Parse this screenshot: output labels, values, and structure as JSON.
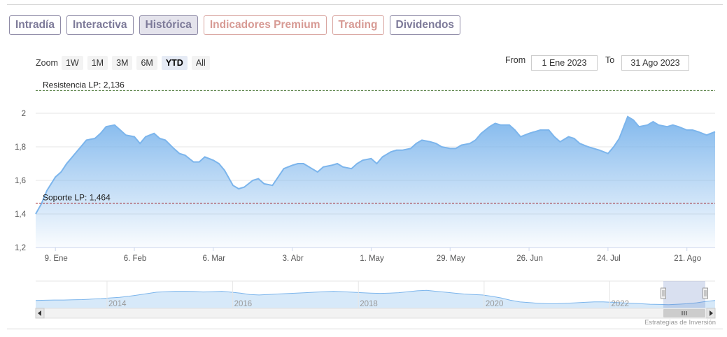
{
  "tabs": [
    {
      "label": "Intradía",
      "active": false,
      "premium": false
    },
    {
      "label": "Interactiva",
      "active": false,
      "premium": false
    },
    {
      "label": "Histórica",
      "active": true,
      "premium": false
    },
    {
      "label": "Indicadores Premium",
      "active": false,
      "premium": true
    },
    {
      "label": "Trading",
      "active": false,
      "premium": true
    },
    {
      "label": "Dividendos",
      "active": false,
      "premium": false
    }
  ],
  "range_selector": {
    "zoom_label": "Zoom",
    "buttons": [
      "1W",
      "1M",
      "3M",
      "6M",
      "YTD",
      "All"
    ],
    "selected": "YTD",
    "from_label": "From",
    "from_value": "1 Ene 2023",
    "to_label": "To",
    "to_value": "31 Ago 2023"
  },
  "colors": {
    "series": "#7cb5ec",
    "resistance": "#4d7a3a",
    "support": "#a0222a",
    "tab_border": "#8e8aa6",
    "premium_tab": "#d79a94"
  },
  "chart_data": {
    "type": "area",
    "x": [
      "2023-01-02",
      "2023-01-04",
      "2023-01-06",
      "2023-01-09",
      "2023-01-11",
      "2023-01-13",
      "2023-01-16",
      "2023-01-18",
      "2023-01-20",
      "2023-01-23",
      "2023-01-25",
      "2023-01-27",
      "2023-01-30",
      "2023-02-01",
      "2023-02-03",
      "2023-02-06",
      "2023-02-08",
      "2023-02-10",
      "2023-02-13",
      "2023-02-15",
      "2023-02-17",
      "2023-02-20",
      "2023-02-22",
      "2023-02-24",
      "2023-02-27",
      "2023-03-01",
      "2023-03-03",
      "2023-03-06",
      "2023-03-08",
      "2023-03-10",
      "2023-03-13",
      "2023-03-15",
      "2023-03-17",
      "2023-03-20",
      "2023-03-22",
      "2023-03-24",
      "2023-03-27",
      "2023-03-29",
      "2023-03-31",
      "2023-04-03",
      "2023-04-05",
      "2023-04-07",
      "2023-04-10",
      "2023-04-12",
      "2023-04-14",
      "2023-04-17",
      "2023-04-19",
      "2023-04-21",
      "2023-04-24",
      "2023-04-26",
      "2023-04-28",
      "2023-05-01",
      "2023-05-03",
      "2023-05-05",
      "2023-05-08",
      "2023-05-10",
      "2023-05-12",
      "2023-05-15",
      "2023-05-17",
      "2023-05-19",
      "2023-05-22",
      "2023-05-24",
      "2023-05-26",
      "2023-05-29",
      "2023-05-31",
      "2023-06-02",
      "2023-06-05",
      "2023-06-07",
      "2023-06-09",
      "2023-06-12",
      "2023-06-14",
      "2023-06-16",
      "2023-06-19",
      "2023-06-21",
      "2023-06-23",
      "2023-06-26",
      "2023-06-28",
      "2023-06-30",
      "2023-07-03",
      "2023-07-05",
      "2023-07-07",
      "2023-07-10",
      "2023-07-12",
      "2023-07-14",
      "2023-07-17",
      "2023-07-19",
      "2023-07-21",
      "2023-07-24",
      "2023-07-26",
      "2023-07-28",
      "2023-07-31",
      "2023-08-02",
      "2023-08-04",
      "2023-08-07",
      "2023-08-09",
      "2023-08-11",
      "2023-08-14",
      "2023-08-16",
      "2023-08-18",
      "2023-08-21",
      "2023-08-23",
      "2023-08-25",
      "2023-08-28",
      "2023-08-31"
    ],
    "series": [
      {
        "values": [
          1.4,
          1.46,
          1.54,
          1.62,
          1.65,
          1.7,
          1.76,
          1.8,
          1.84,
          1.85,
          1.88,
          1.92,
          1.93,
          1.9,
          1.87,
          1.86,
          1.82,
          1.86,
          1.88,
          1.85,
          1.84,
          1.79,
          1.76,
          1.75,
          1.71,
          1.71,
          1.74,
          1.72,
          1.7,
          1.66,
          1.57,
          1.55,
          1.56,
          1.6,
          1.61,
          1.58,
          1.57,
          1.62,
          1.67,
          1.69,
          1.7,
          1.7,
          1.67,
          1.65,
          1.68,
          1.69,
          1.7,
          1.68,
          1.67,
          1.7,
          1.72,
          1.73,
          1.7,
          1.74,
          1.77,
          1.78,
          1.78,
          1.79,
          1.82,
          1.84,
          1.83,
          1.82,
          1.8,
          1.79,
          1.79,
          1.81,
          1.82,
          1.84,
          1.88,
          1.92,
          1.94,
          1.93,
          1.93,
          1.9,
          1.86,
          1.88,
          1.89,
          1.9,
          1.9,
          1.86,
          1.83,
          1.86,
          1.85,
          1.82,
          1.8,
          1.79,
          1.78,
          1.76,
          1.8,
          1.85,
          1.98,
          1.96,
          1.92,
          1.93,
          1.95,
          1.93,
          1.92,
          1.93,
          1.92,
          1.9,
          1.9,
          1.89,
          1.87,
          1.89
        ]
      }
    ],
    "y_ticks": [
      "1,2",
      "1,4",
      "1,6",
      "1,8",
      "2"
    ],
    "ylim": [
      1.2,
      2.2
    ],
    "x_ticks": [
      {
        "date": "2023-01-09",
        "label": "9. Ene"
      },
      {
        "date": "2023-02-06",
        "label": "6. Feb"
      },
      {
        "date": "2023-03-06",
        "label": "6. Mar"
      },
      {
        "date": "2023-04-03",
        "label": "3. Abr"
      },
      {
        "date": "2023-05-01",
        "label": "1. May"
      },
      {
        "date": "2023-05-29",
        "label": "29. May"
      },
      {
        "date": "2023-06-26",
        "label": "26. Jun"
      },
      {
        "date": "2023-07-24",
        "label": "24. Jul"
      },
      {
        "date": "2023-08-21",
        "label": "21. Ago"
      }
    ],
    "xlim": [
      "2023-01-02",
      "2023-08-31"
    ],
    "plot_lines": [
      {
        "label": "Resistencia LP: 2,136",
        "value": 2.136,
        "style": "dashed",
        "color": "#4d7a3a"
      },
      {
        "label": "Soporte LP: 1,464",
        "value": 1.464,
        "style": "dashed",
        "color": "#a0222a"
      }
    ],
    "grid": true,
    "navigator": {
      "x_labels": [
        "2014",
        "2016",
        "2018",
        "2020",
        "2022"
      ],
      "values": [
        0.34,
        0.35,
        0.36,
        0.36,
        0.37,
        0.38,
        0.4,
        0.42,
        0.45,
        0.48,
        0.52,
        0.58,
        0.64,
        0.7,
        0.72,
        0.74,
        0.74,
        0.73,
        0.71,
        0.72,
        0.74,
        0.7,
        0.66,
        0.6,
        0.58,
        0.6,
        0.62,
        0.64,
        0.66,
        0.68,
        0.7,
        0.72,
        0.74,
        0.72,
        0.7,
        0.68,
        0.66,
        0.65,
        0.66,
        0.68,
        0.72,
        0.76,
        0.78,
        0.74,
        0.7,
        0.66,
        0.62,
        0.6,
        0.58,
        0.52,
        0.45,
        0.35,
        0.28,
        0.25,
        0.22,
        0.2,
        0.2,
        0.22,
        0.24,
        0.26,
        0.28,
        0.28,
        0.26,
        0.24,
        0.22,
        0.2,
        0.18,
        0.17,
        0.16,
        0.18,
        0.2,
        0.24,
        0.3,
        0.34
      ]
    }
  },
  "credits": "Estrategias de Inversión"
}
